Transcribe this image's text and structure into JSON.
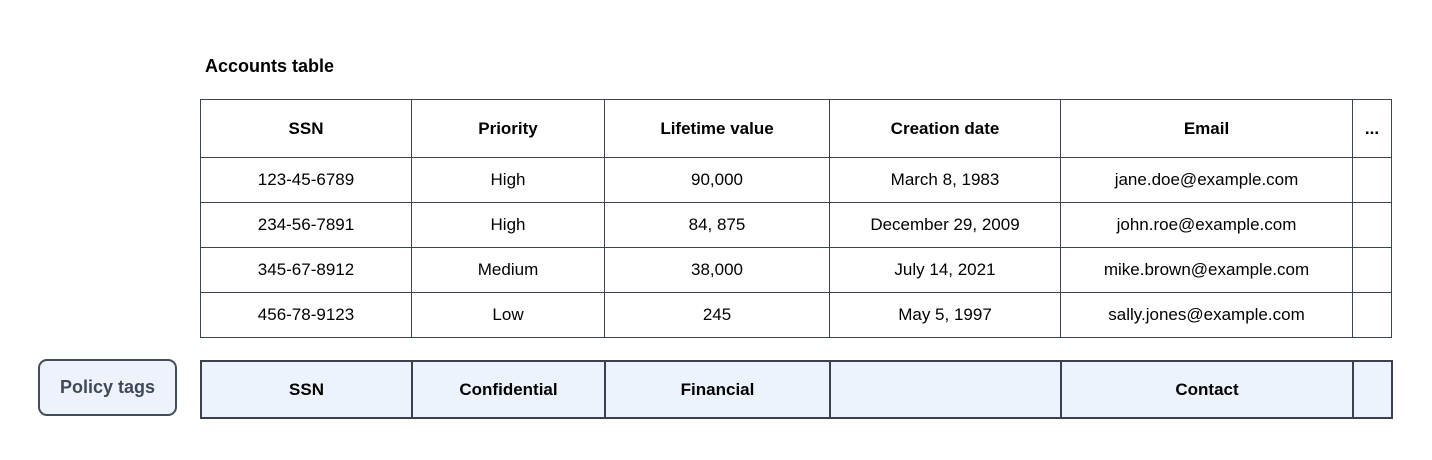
{
  "accounts_table": {
    "title": "Accounts table",
    "columns": [
      "SSN",
      "Priority",
      "Lifetime value",
      "Creation date",
      "Email",
      "..."
    ],
    "rows": [
      [
        "123-45-6789",
        "High",
        "90,000",
        "March 8, 1983",
        "jane.doe@example.com",
        ""
      ],
      [
        "234-56-7891",
        "High",
        "84, 875",
        "December 29, 2009",
        "john.roe@example.com",
        ""
      ],
      [
        "345-67-8912",
        "Medium",
        "38,000",
        "July 14, 2021",
        "mike.brown@example.com",
        ""
      ],
      [
        "456-78-9123",
        "Low",
        "245",
        "May 5, 1997",
        "sally.jones@example.com",
        ""
      ]
    ]
  },
  "policy_tags": {
    "label": "Policy tags",
    "tags": [
      "SSN",
      "Confidential",
      "Financial",
      "",
      "Contact",
      ""
    ]
  },
  "colors": {
    "table_border": "#3b4450",
    "policy_border": "#3a4250",
    "policy_fill": "#edf3fd",
    "policy_label_border": "#434c5b",
    "policy_label_fill": "#eef3fb",
    "policy_label_text": "#40495a"
  }
}
